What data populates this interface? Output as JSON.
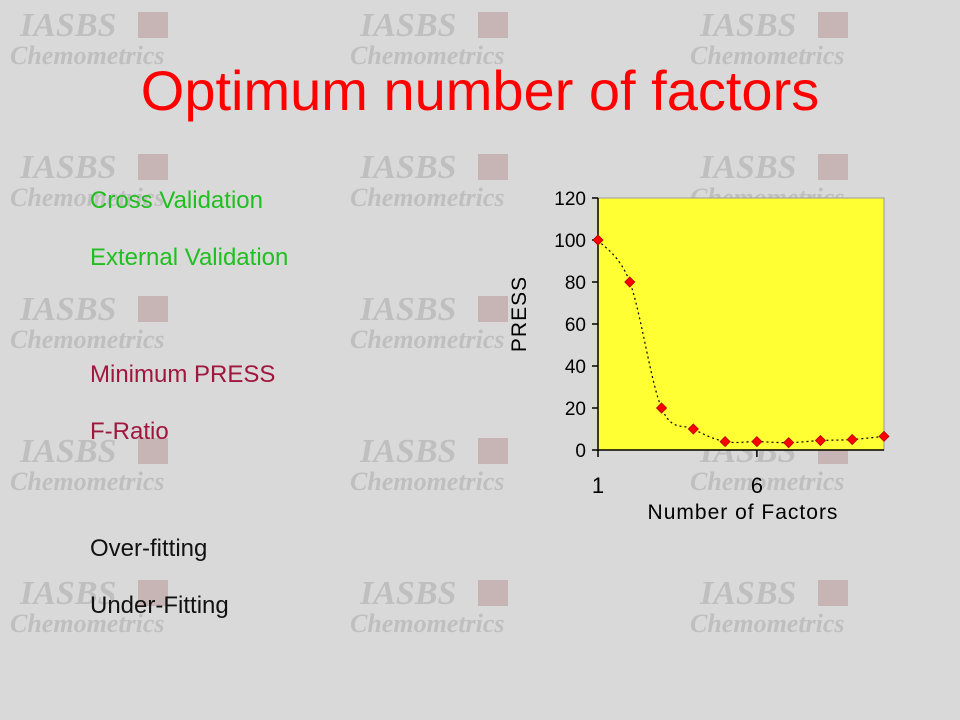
{
  "slide": {
    "title": "Optimum number of factors",
    "title_color": "#ff0000",
    "bullets": [
      {
        "text": "Cross Validation",
        "color": "#1fbf1f"
      },
      {
        "text": "External Validation",
        "color": "#1fbf1f"
      },
      {
        "text": "Minimum PRESS",
        "color": "#a0163c"
      },
      {
        "text": "F-Ratio",
        "color": "#a0163c"
      },
      {
        "text": "Over-fitting",
        "color": "#111111"
      },
      {
        "text": "Under-Fitting",
        "color": "#111111"
      }
    ]
  },
  "watermark": {
    "logo_text": "IASBS",
    "subtitle_text": "Chemometrics"
  },
  "chart_data": {
    "type": "line",
    "title": "",
    "xlabel": "Number of Factors",
    "ylabel": "PRESS",
    "x": [
      1,
      2,
      3,
      4,
      5,
      6,
      7,
      8,
      9,
      10
    ],
    "x_ticks": [
      1,
      6
    ],
    "xlim": [
      1,
      10
    ],
    "ylim": [
      0,
      120
    ],
    "y_ticks": [
      0,
      20,
      40,
      60,
      80,
      100,
      120
    ],
    "series": [
      {
        "values": [
          100,
          80,
          20,
          10,
          4,
          4,
          3.5,
          4.5,
          5,
          6.5
        ],
        "marker_color": "#ff0000",
        "line_style": "dotted"
      }
    ],
    "plot_bg": "#ffff33",
    "grid": false,
    "legend": "none"
  }
}
